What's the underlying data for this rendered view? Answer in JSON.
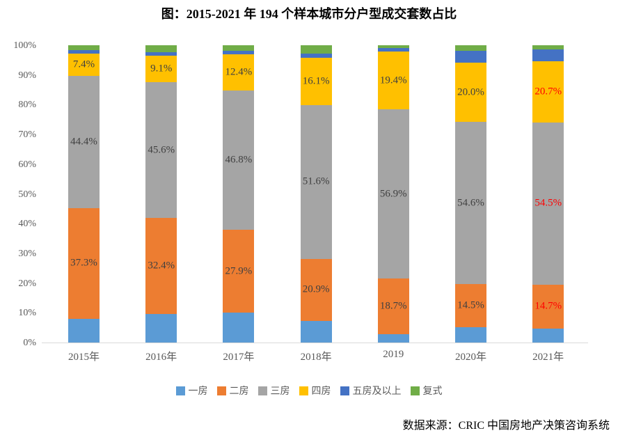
{
  "title": "图：2015-2021 年 194 个样本城市分户型成交套数占比",
  "source": "数据来源：CRIC 中国房地产决策咨询系统",
  "colors": {
    "axis_line": "#d9d9d9",
    "tick_label": "#595959",
    "data_label": "#404040",
    "highlight_label": "#ff0000",
    "title": "#000000"
  },
  "chart_data": {
    "type": "bar",
    "stacked": true,
    "title": "图：2015-2021 年 194 个样本城市分户型成交套数占比",
    "categories": [
      "2015年",
      "2016年",
      "2017年",
      "2018年",
      "2019",
      "2020年",
      "2021年"
    ],
    "series": [
      {
        "name": "一房",
        "color": "#5b9bd5",
        "values": [
          8.0,
          9.5,
          10.0,
          7.3,
          2.8,
          5.1,
          4.8
        ]
      },
      {
        "name": "二房",
        "color": "#ed7d31",
        "values": [
          37.3,
          32.4,
          27.9,
          20.9,
          18.7,
          14.5,
          14.7
        ]
      },
      {
        "name": "三房",
        "color": "#a5a5a5",
        "values": [
          44.4,
          45.6,
          46.8,
          51.6,
          56.9,
          54.6,
          54.5
        ]
      },
      {
        "name": "四房",
        "color": "#ffc000",
        "values": [
          7.4,
          9.1,
          12.4,
          16.1,
          19.4,
          20.0,
          20.7
        ]
      },
      {
        "name": "五房及以上",
        "color": "#4472c4",
        "values": [
          1.2,
          1.1,
          1.0,
          1.4,
          1.3,
          4.0,
          3.8
        ]
      },
      {
        "name": "复式",
        "color": "#70ad47",
        "values": [
          1.7,
          2.3,
          1.9,
          2.7,
          0.9,
          1.8,
          1.5
        ]
      }
    ],
    "data_labels": {
      "二房": [
        "37.3%",
        "32.4%",
        "27.9%",
        "20.9%",
        "18.7%",
        "14.5%",
        "14.7%"
      ],
      "三房": [
        "44.4%",
        "45.6%",
        "46.8%",
        "51.6%",
        "56.9%",
        "54.6%",
        "54.5%"
      ],
      "四房": [
        "7.4%",
        "9.1%",
        "12.4%",
        "16.1%",
        "19.4%",
        "20.0%",
        "20.7%"
      ]
    },
    "highlight_category_index": 6,
    "y_ticks": [
      "0%",
      "10%",
      "20%",
      "30%",
      "40%",
      "50%",
      "60%",
      "70%",
      "80%",
      "90%",
      "100%"
    ],
    "ylim": [
      0,
      100
    ],
    "grid": false,
    "legend_position": "bottom",
    "legend": [
      "一房",
      "二房",
      "三房",
      "四房",
      "五房及以上",
      "复式"
    ]
  }
}
